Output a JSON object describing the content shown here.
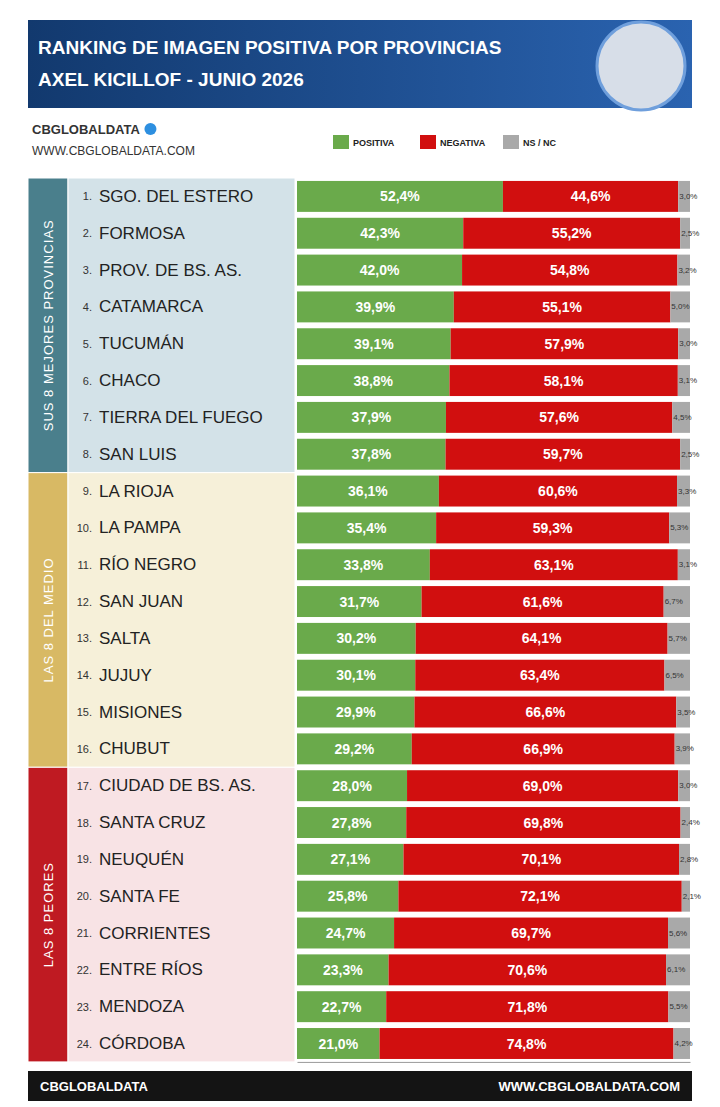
{
  "chart_data": {
    "type": "bar",
    "orientation": "horizontal",
    "stacked": true,
    "data_labels": true,
    "grid": false,
    "tick_labels": false,
    "legend": "top",
    "title": "RANKING DE IMAGEN POSITIVA POR PROVINCIAS",
    "subtitle": "AXEL KICILLOF - JUNIO 2026",
    "source": "CBGLOBALDATA",
    "source_url": "WWW.CBGLOBALDATA.COM",
    "groups": [
      "SUS 8 MEJORES PROVINCIAS",
      "LAS 8 DEL MEDIO",
      "LAS 8 PEORES"
    ],
    "rank_labels": [
      "1.",
      "2.",
      "3.",
      "4.",
      "5.",
      "6.",
      "7.",
      "8.",
      "9.",
      "10.",
      "11.",
      "12.",
      "13.",
      "14.",
      "15.",
      "16.",
      "17.",
      "18.",
      "19.",
      "20.",
      "21.",
      "22.",
      "23.",
      "24."
    ],
    "categories": [
      "SGO. DEL ESTERO",
      "FORMOSA",
      "PROV. DE BS. AS.",
      "CATAMARCA",
      "TUCUMÁN",
      "CHACO",
      "TIERRA DEL FUEGO",
      "SAN LUIS",
      "LA RIOJA",
      "LA PAMPA",
      "RÍO NEGRO",
      "SAN JUAN",
      "SALTA",
      "JUJUY",
      "MISIONES",
      "CHUBUT",
      "CIUDAD DE BS. AS.",
      "SANTA CRUZ",
      "NEUQUÉN",
      "SANTA FE",
      "CORRIENTES",
      "ENTRE RÍOS",
      "MENDOZA",
      "CÓRDOBA"
    ],
    "xlim": [
      0,
      100
    ],
    "series": [
      {
        "name": "POSITIVA",
        "color": "#6aaa4b",
        "values": [
          52.4,
          42.3,
          42.0,
          39.9,
          39.1,
          38.8,
          37.9,
          37.8,
          36.1,
          35.4,
          33.8,
          31.7,
          30.2,
          30.1,
          29.9,
          29.2,
          28.0,
          27.8,
          27.1,
          25.8,
          24.7,
          23.3,
          22.7,
          21.0
        ],
        "value_labels": [
          "52,4%",
          "42,3%",
          "42,0%",
          "39,9%",
          "39,1%",
          "38,8%",
          "37,9%",
          "37,8%",
          "36,1%",
          "35,4%",
          "33,8%",
          "31,7%",
          "30,2%",
          "30,1%",
          "29,9%",
          "29,2%",
          "28,0%",
          "27,8%",
          "27,1%",
          "25,8%",
          "24,7%",
          "23,3%",
          "22,7%",
          "21,0%"
        ]
      },
      {
        "name": "NEGATIVA",
        "color": "#d10f0f",
        "values": [
          44.6,
          55.2,
          54.8,
          55.1,
          57.9,
          58.1,
          57.6,
          59.7,
          60.6,
          59.3,
          63.1,
          61.6,
          64.1,
          63.4,
          66.6,
          66.9,
          69.0,
          69.8,
          70.1,
          72.1,
          69.7,
          70.6,
          71.8,
          74.8
        ],
        "value_labels": [
          "44,6%",
          "55,2%",
          "54,8%",
          "55,1%",
          "57,9%",
          "58,1%",
          "57,6%",
          "59,7%",
          "60,6%",
          "59,3%",
          "63,1%",
          "61,6%",
          "64,1%",
          "63,4%",
          "66,6%",
          "66,9%",
          "69,0%",
          "69,8%",
          "70,1%",
          "72,1%",
          "69,7%",
          "70,6%",
          "71,8%",
          "74,8%"
        ]
      },
      {
        "name": "NS / NC",
        "color": "#a9a9a9",
        "values": [
          3.0,
          2.5,
          3.2,
          5.0,
          3.0,
          3.1,
          4.5,
          2.5,
          3.3,
          5.3,
          3.1,
          6.7,
          5.7,
          6.5,
          3.5,
          3.9,
          3.0,
          2.4,
          2.8,
          2.1,
          5.6,
          6.1,
          5.5,
          4.2
        ],
        "value_labels": [
          "3,0%",
          "2,5%",
          "3,2%",
          "5,0%",
          "3,0%",
          "3,1%",
          "4,5%",
          "2,5%",
          "3,3%",
          "5,3%",
          "3,1%",
          "6,7%",
          "5,7%",
          "6,5%",
          "3,5%",
          "3,9%",
          "3,0%",
          "2,4%",
          "2,8%",
          "2,1%",
          "5,6%",
          "6,1%",
          "5,5%",
          "4,2%"
        ]
      }
    ]
  }
}
